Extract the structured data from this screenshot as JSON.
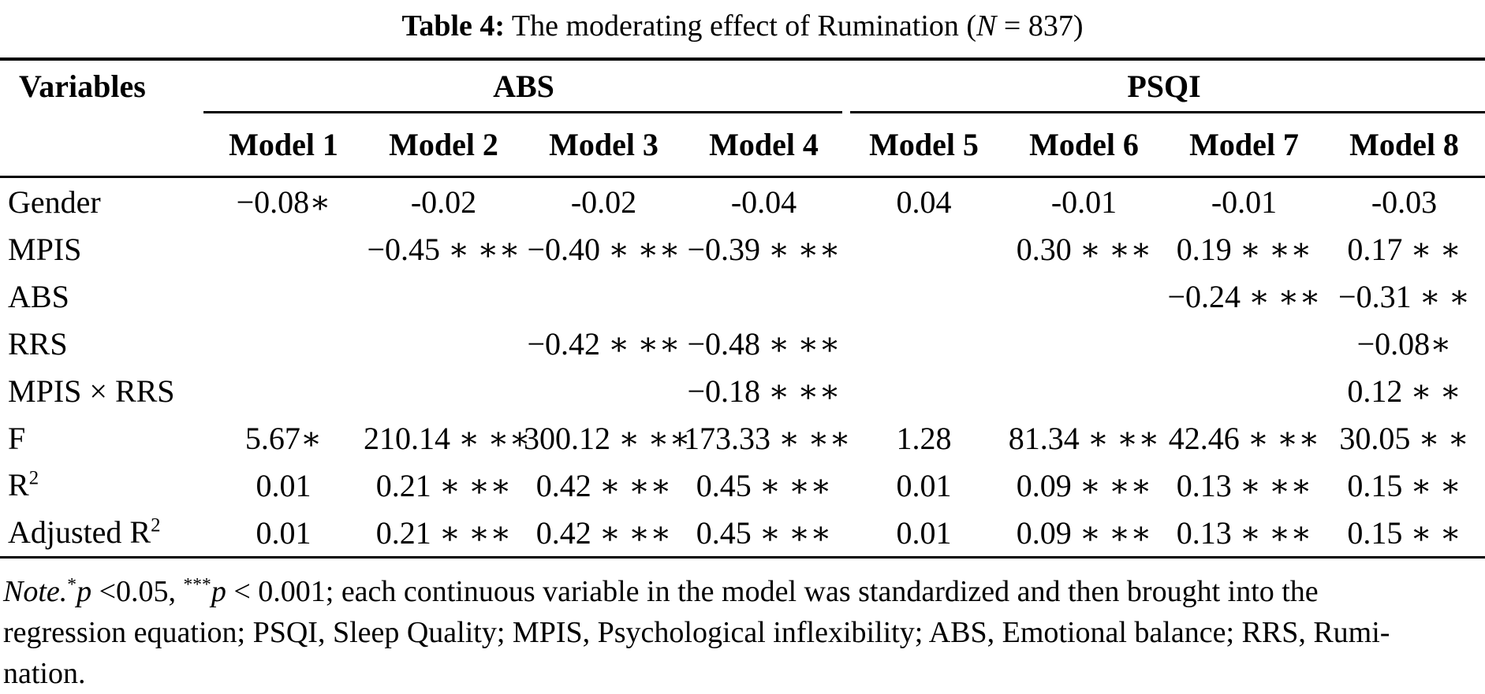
{
  "title": {
    "tag": "Table 4:",
    "text": " The moderating effect of Rumination (",
    "nvar": "N",
    "rest": " = 837)"
  },
  "table": {
    "group_header": {
      "variables": "Variables",
      "abs": "ABS",
      "psqi": "PSQI"
    },
    "model_headers": [
      "Model 1",
      "Model 2",
      "Model 3",
      "Model 4",
      "Model 5",
      "Model 6",
      "Model 7",
      "Model 8"
    ],
    "rows": [
      {
        "label": "Gender",
        "values": [
          "−0.08∗",
          "-0.02",
          "-0.02",
          "-0.04",
          "0.04",
          "-0.01",
          "-0.01",
          "-0.03"
        ]
      },
      {
        "label": "MPIS",
        "values": [
          "",
          "−0.45 ∗ ∗∗",
          "−0.40 ∗ ∗∗",
          "−0.39 ∗ ∗∗",
          "",
          "0.30 ∗ ∗∗",
          "0.19 ∗ ∗∗",
          "0.17 ∗ ∗"
        ]
      },
      {
        "label": "ABS",
        "values": [
          "",
          "",
          "",
          "",
          "",
          "",
          "−0.24 ∗ ∗∗",
          "−0.31 ∗ ∗"
        ]
      },
      {
        "label": "RRS",
        "values": [
          "",
          "",
          "−0.42 ∗ ∗∗",
          "−0.48 ∗ ∗∗",
          "",
          "",
          "",
          "−0.08∗"
        ]
      },
      {
        "label": "MPIS × RRS",
        "values": [
          "",
          "",
          "",
          "−0.18 ∗ ∗∗",
          "",
          "",
          "",
          "0.12 ∗ ∗"
        ]
      },
      {
        "label": "F",
        "values": [
          "5.67∗",
          "210.14 ∗ ∗∗",
          "300.12 ∗ ∗∗",
          "173.33 ∗ ∗∗",
          "1.28",
          "81.34 ∗ ∗∗",
          "42.46 ∗ ∗∗",
          "30.05 ∗ ∗"
        ]
      },
      {
        "label": "",
        "label_it": "R",
        "label_sup": "2",
        "values": [
          "0.01",
          "0.21 ∗ ∗∗",
          "0.42 ∗ ∗∗",
          "0.45 ∗ ∗∗",
          "0.01",
          "0.09 ∗ ∗∗",
          "0.13 ∗ ∗∗",
          "0.15 ∗ ∗"
        ]
      },
      {
        "label": "Adjusted ",
        "label_it": "R",
        "label_sup": "2",
        "values": [
          "0.01",
          "0.21 ∗ ∗∗",
          "0.42 ∗ ∗∗",
          "0.45 ∗ ∗∗",
          "0.01",
          "0.09 ∗ ∗∗",
          "0.13 ∗ ∗∗",
          "0.15 ∗ ∗"
        ]
      }
    ]
  },
  "note": {
    "seg_note": "Note.",
    "seg_star1": "*",
    "seg_p1": "p",
    "seg_mid1": " <0.05, ",
    "seg_star2": "***",
    "seg_p2": "p",
    "seg_line1_rest": " < 0.001; each continuous variable in the model was standardized and then brought into the",
    "line2": "regression equation; PSQI, Sleep Quality; MPIS, Psychological inflexibility; ABS, Emotional balance; RRS, Rumi-",
    "line3": "nation."
  },
  "colors": {
    "text": "#000000",
    "background": "#ffffff"
  }
}
